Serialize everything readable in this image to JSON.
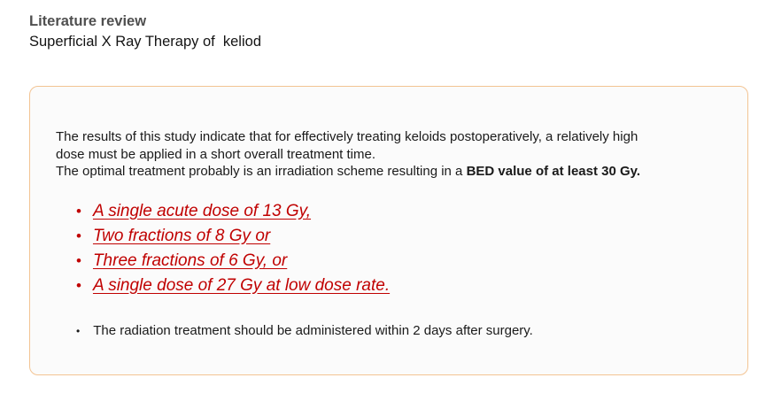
{
  "slide": {
    "title": "Literature review",
    "subtitle": "Superficial X Ray Therapy of  keliod"
  },
  "panel": {
    "paragraph": {
      "line1": "The results of this study indicate that for effectively treating keloids postoperatively, a relatively high",
      "line2": "dose must be applied in a short overall treatment time.",
      "line3_prefix": "The optimal treatment probably is an irradiation scheme resulting in a ",
      "line3_bold": "BED value of at least 30 Gy."
    },
    "bullet_glyph": "•",
    "red_bullets": [
      "A single acute dose of 13 Gy,",
      "Two fractions of 8 Gy or",
      "Three fractions of 6 Gy, or",
      "A single dose of 27 Gy at low dose rate."
    ],
    "footer_bullet": "The radiation treatment should be administered within 2 days after surgery.",
    "colors": {
      "panel_border": "#f3c493",
      "red_text": "#c00000",
      "title_gray": "#4f4f4f"
    }
  }
}
